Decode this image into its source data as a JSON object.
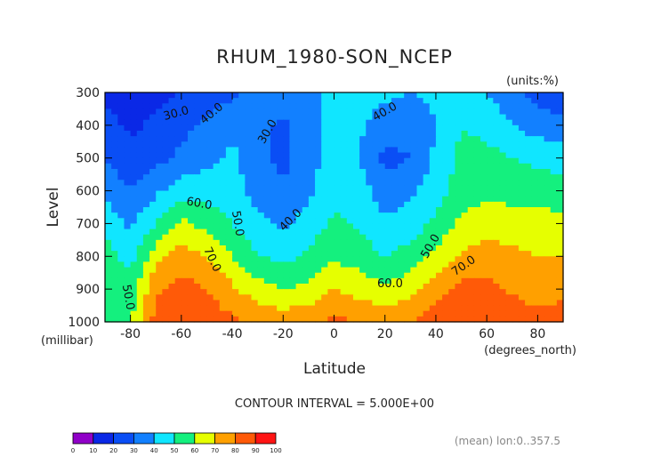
{
  "chart_data": {
    "type": "heatmap",
    "title": "RHUM_1980-SON_NCEP",
    "units": "(units:%)",
    "xlabel": "Latitude",
    "ylabel": "Level",
    "x_unit": "(degrees_north)",
    "y_unit": "(millibar)",
    "xlim": [
      -90,
      90
    ],
    "ylim": [
      1000,
      300
    ],
    "x_ticks": [
      -80,
      -60,
      -40,
      -20,
      0,
      20,
      40,
      60,
      80
    ],
    "y_ticks": [
      300,
      400,
      500,
      600,
      700,
      800,
      900,
      1000
    ],
    "contour_interval_text": "CONTOUR INTERVAL = 5.000E+00",
    "footnote": "(mean) lon:0..357.5",
    "contour_labels": [
      {
        "text": "30.0",
        "lat": -62,
        "level": 365,
        "angle": -15
      },
      {
        "text": "40.0",
        "lat": -48,
        "level": 365,
        "angle": -40
      },
      {
        "text": "30.0",
        "lat": -26,
        "level": 420,
        "angle": -60
      },
      {
        "text": "40.0",
        "lat": -17,
        "level": 690,
        "angle": -45
      },
      {
        "text": "50.0",
        "lat": -38,
        "level": 700,
        "angle": 80
      },
      {
        "text": "60.0",
        "lat": -53,
        "level": 640,
        "angle": 10
      },
      {
        "text": "70.0",
        "lat": -48,
        "level": 810,
        "angle": 65
      },
      {
        "text": "50.0",
        "lat": -81,
        "level": 925,
        "angle": 80
      },
      {
        "text": "40.0",
        "lat": 20,
        "level": 360,
        "angle": -30
      },
      {
        "text": "50.0",
        "lat": 38,
        "level": 770,
        "angle": -60
      },
      {
        "text": "60.0",
        "lat": 22,
        "level": 885,
        "angle": 0
      },
      {
        "text": "70.0",
        "lat": 51,
        "level": 830,
        "angle": -35
      }
    ],
    "colorbar": {
      "ticks": [
        "0",
        "10",
        "20",
        "30",
        "40",
        "50",
        "60",
        "70",
        "80",
        "90",
        "100"
      ],
      "colors": [
        "#9000c8",
        "#0a28e6",
        "#0a4ef5",
        "#1280ff",
        "#10e6ff",
        "#14f07e",
        "#e6ff00",
        "#ffa000",
        "#ff5a08",
        "#ff1414"
      ]
    },
    "levels": [
      300,
      400,
      500,
      600,
      700,
      800,
      900,
      1000
    ],
    "latitudes": [
      -90,
      -80,
      -70,
      -60,
      -50,
      -40,
      -30,
      -20,
      -10,
      0,
      10,
      20,
      30,
      40,
      50,
      60,
      70,
      80,
      90
    ],
    "values": [
      [
        18,
        12,
        16,
        20,
        24,
        28,
        32,
        35,
        38,
        42,
        46,
        43,
        40,
        42,
        48,
        40,
        33,
        26,
        22
      ],
      [
        24,
        18,
        22,
        27,
        32,
        38,
        33,
        28,
        34,
        44,
        42,
        34,
        33,
        40,
        50,
        47,
        40,
        35,
        33
      ],
      [
        30,
        24,
        27,
        32,
        37,
        42,
        33,
        27,
        35,
        45,
        40,
        27,
        30,
        42,
        53,
        53,
        50,
        48,
        47
      ],
      [
        36,
        30,
        38,
        46,
        45,
        44,
        36,
        32,
        38,
        48,
        45,
        34,
        38,
        45,
        55,
        57,
        55,
        55,
        52
      ],
      [
        48,
        38,
        50,
        62,
        57,
        50,
        42,
        38,
        44,
        52,
        48,
        42,
        44,
        53,
        62,
        66,
        66,
        66,
        64
      ],
      [
        55,
        46,
        66,
        75,
        70,
        60,
        50,
        47,
        52,
        58,
        55,
        50,
        54,
        62,
        72,
        74,
        72,
        70,
        70
      ],
      [
        58,
        54,
        78,
        84,
        80,
        72,
        64,
        60,
        62,
        70,
        66,
        62,
        66,
        75,
        84,
        83,
        79,
        77,
        78
      ],
      [
        60,
        58,
        84,
        90,
        86,
        82,
        78,
        76,
        78,
        82,
        80,
        78,
        80,
        86,
        90,
        88,
        84,
        82,
        84
      ]
    ]
  }
}
